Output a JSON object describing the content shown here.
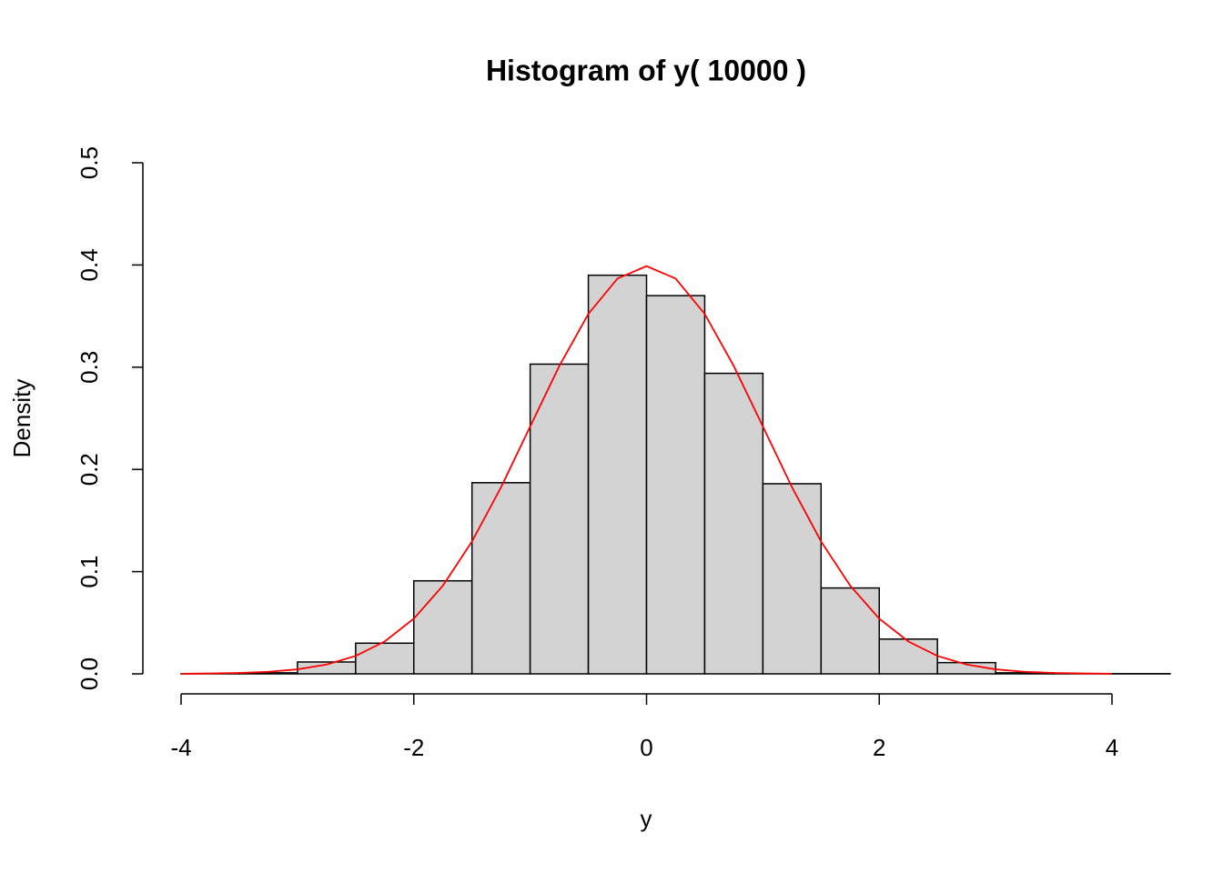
{
  "chart_data": {
    "type": "histogram",
    "title": "Histogram of y( 10000 )",
    "x_label": "y",
    "y_label": "Density",
    "bins": [
      -4,
      -3.5,
      -3,
      -2.5,
      -2,
      -1.5,
      -1,
      -0.5,
      0,
      0.5,
      1,
      1.5,
      2,
      2.5,
      3,
      3.5,
      4,
      4.5
    ],
    "values": [
      0.0002,
      0.001,
      0.0116,
      0.03,
      0.091,
      0.187,
      0.303,
      0.39,
      0.37,
      0.294,
      0.186,
      0.084,
      0.034,
      0.011,
      0.001,
      0.0002,
      0.0002
    ],
    "color": "#d3d3d3",
    "curve": {
      "color": "#ff0000",
      "x": [
        -4,
        -3.75,
        -3.5,
        -3.25,
        -3,
        -2.75,
        -2.5,
        -2.25,
        -2,
        -1.75,
        -1.5,
        -1.25,
        -1,
        -0.75,
        -0.5,
        -0.25,
        0,
        0.25,
        0.5,
        0.75,
        1,
        1.25,
        1.5,
        1.75,
        2,
        2.25,
        2.5,
        2.75,
        3,
        3.25,
        3.5,
        3.75,
        4
      ],
      "values": [
        0.0001,
        0.0004,
        0.0009,
        0.002,
        0.0044,
        0.0091,
        0.0175,
        0.0317,
        0.054,
        0.0863,
        0.1295,
        0.1826,
        0.242,
        0.3011,
        0.3521,
        0.3867,
        0.3989,
        0.3867,
        0.3521,
        0.3011,
        0.242,
        0.1826,
        0.1295,
        0.0863,
        0.054,
        0.0317,
        0.0175,
        0.0091,
        0.0044,
        0.002,
        0.0009,
        0.0004,
        0.0001
      ]
    },
    "xlim": [
      -4,
      4
    ],
    "xticks": [
      -4,
      -2,
      0,
      2,
      4
    ],
    "ylim": [
      0,
      0.5
    ],
    "yticks": [
      {
        "value": 0,
        "label": "0.0"
      },
      0.1,
      0.2,
      0.3,
      0.4,
      0.5
    ]
  }
}
